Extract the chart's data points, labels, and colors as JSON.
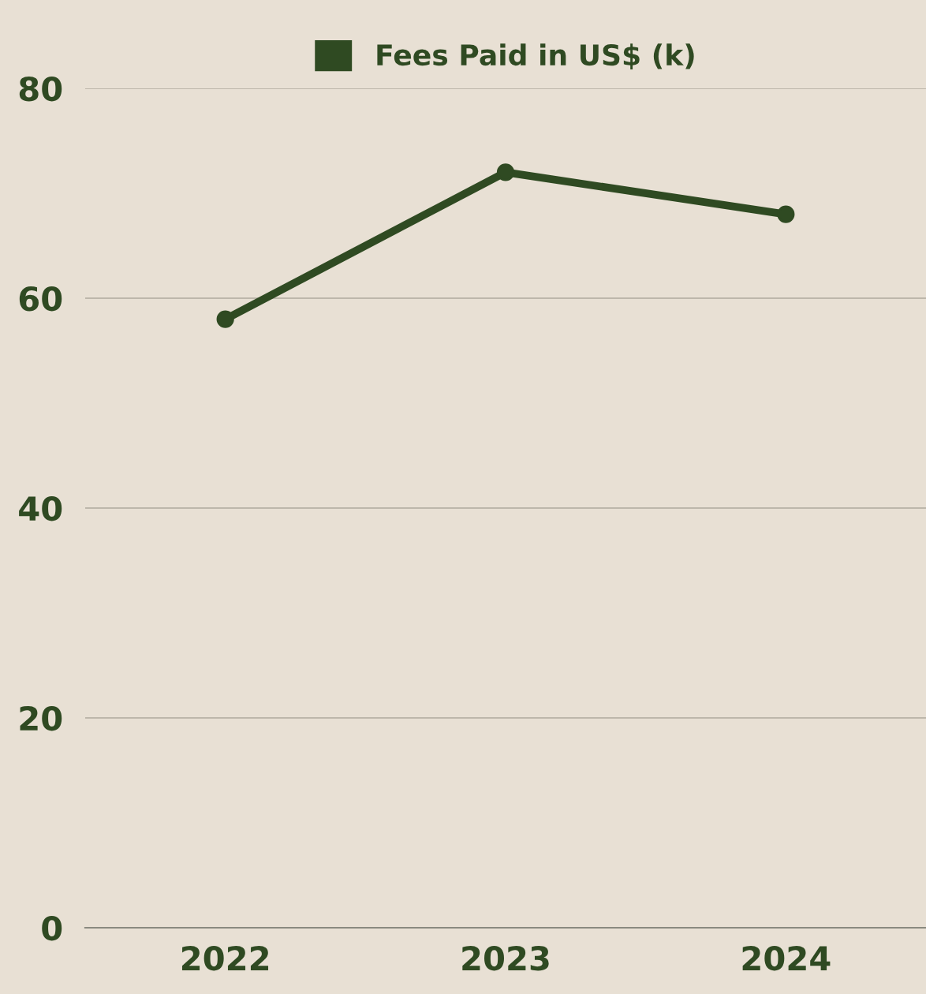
{
  "chart_data": {
    "type": "line",
    "categories": [
      "2022",
      "2023",
      "2024"
    ],
    "series": [
      {
        "name": "Fees Paid in US$ (k)",
        "color": "#2f4a22",
        "values": [
          58,
          72,
          68
        ]
      }
    ],
    "ylim": [
      0,
      80
    ],
    "yticks": [
      0,
      20,
      40,
      60,
      80
    ],
    "grid": "y",
    "legend": "top",
    "marker": "circle",
    "line_style": "solid"
  }
}
